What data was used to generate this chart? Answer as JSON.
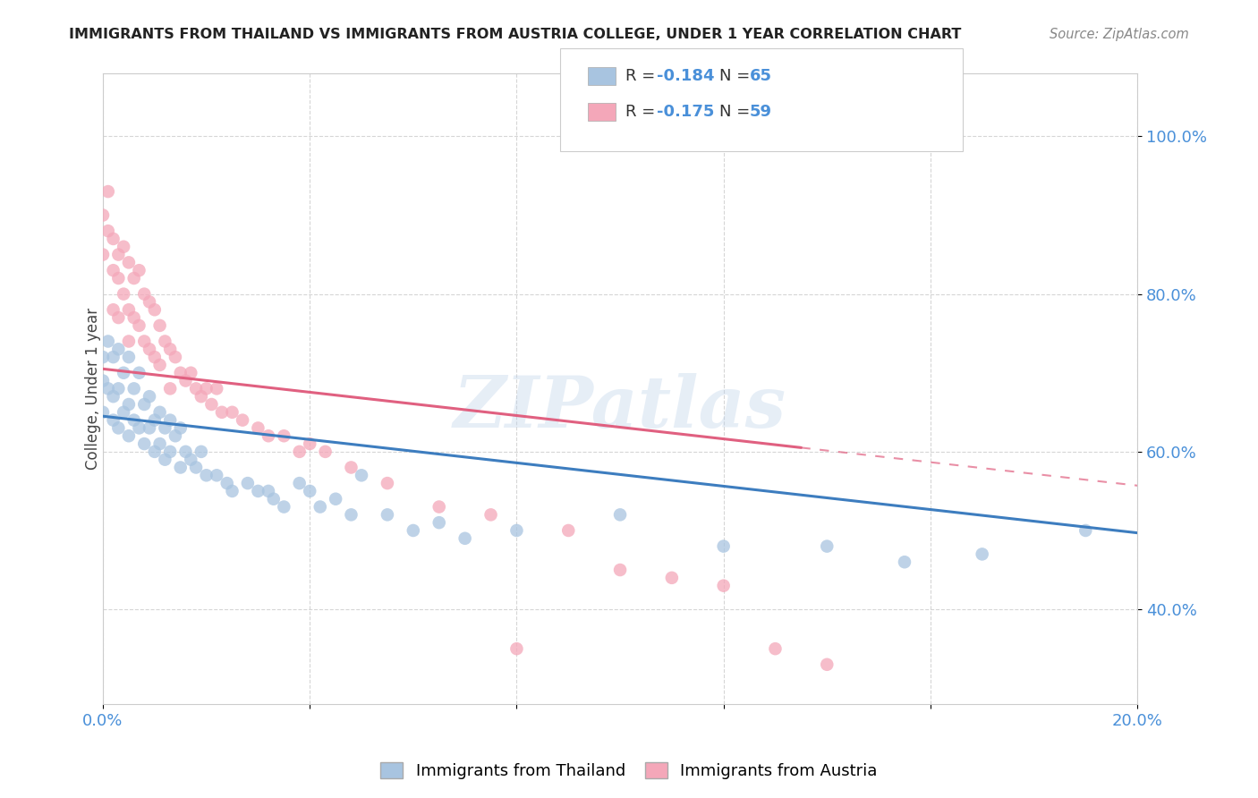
{
  "title": "IMMIGRANTS FROM THAILAND VS IMMIGRANTS FROM AUSTRIA COLLEGE, UNDER 1 YEAR CORRELATION CHART",
  "source": "Source: ZipAtlas.com",
  "ylabel": "College, Under 1 year",
  "ytick_labels": [
    "40.0%",
    "60.0%",
    "80.0%",
    "100.0%"
  ],
  "ytick_values": [
    0.4,
    0.6,
    0.8,
    1.0
  ],
  "xlim": [
    0.0,
    0.2
  ],
  "ylim": [
    0.28,
    1.08
  ],
  "legend_r_thailand": "R = -0.184",
  "legend_n_thailand": "N = 65",
  "legend_r_austria": "R = -0.175",
  "legend_n_austria": "N = 59",
  "thailand_color": "#a8c4e0",
  "austria_color": "#f4a7b9",
  "trend_thailand_color": "#3d7dbf",
  "trend_austria_color": "#e06080",
  "background_color": "#ffffff",
  "watermark": "ZIPatlas",
  "thailand_scatter_x": [
    0.0,
    0.0,
    0.0,
    0.001,
    0.001,
    0.002,
    0.002,
    0.002,
    0.003,
    0.003,
    0.003,
    0.004,
    0.004,
    0.005,
    0.005,
    0.005,
    0.006,
    0.006,
    0.007,
    0.007,
    0.008,
    0.008,
    0.009,
    0.009,
    0.01,
    0.01,
    0.011,
    0.011,
    0.012,
    0.012,
    0.013,
    0.013,
    0.014,
    0.015,
    0.015,
    0.016,
    0.017,
    0.018,
    0.019,
    0.02,
    0.022,
    0.024,
    0.025,
    0.028,
    0.03,
    0.032,
    0.033,
    0.035,
    0.038,
    0.04,
    0.042,
    0.045,
    0.048,
    0.05,
    0.055,
    0.06,
    0.065,
    0.07,
    0.08,
    0.1,
    0.12,
    0.14,
    0.155,
    0.17,
    0.19
  ],
  "thailand_scatter_y": [
    0.72,
    0.69,
    0.65,
    0.74,
    0.68,
    0.72,
    0.67,
    0.64,
    0.73,
    0.68,
    0.63,
    0.7,
    0.65,
    0.72,
    0.66,
    0.62,
    0.68,
    0.64,
    0.7,
    0.63,
    0.66,
    0.61,
    0.67,
    0.63,
    0.64,
    0.6,
    0.65,
    0.61,
    0.63,
    0.59,
    0.64,
    0.6,
    0.62,
    0.63,
    0.58,
    0.6,
    0.59,
    0.58,
    0.6,
    0.57,
    0.57,
    0.56,
    0.55,
    0.56,
    0.55,
    0.55,
    0.54,
    0.53,
    0.56,
    0.55,
    0.53,
    0.54,
    0.52,
    0.57,
    0.52,
    0.5,
    0.51,
    0.49,
    0.5,
    0.52,
    0.48,
    0.48,
    0.46,
    0.47,
    0.5
  ],
  "austria_scatter_x": [
    0.0,
    0.0,
    0.001,
    0.001,
    0.002,
    0.002,
    0.002,
    0.003,
    0.003,
    0.003,
    0.004,
    0.004,
    0.005,
    0.005,
    0.005,
    0.006,
    0.006,
    0.007,
    0.007,
    0.008,
    0.008,
    0.009,
    0.009,
    0.01,
    0.01,
    0.011,
    0.011,
    0.012,
    0.013,
    0.013,
    0.014,
    0.015,
    0.016,
    0.017,
    0.018,
    0.019,
    0.02,
    0.021,
    0.022,
    0.023,
    0.025,
    0.027,
    0.03,
    0.032,
    0.035,
    0.038,
    0.04,
    0.043,
    0.048,
    0.055,
    0.065,
    0.075,
    0.08,
    0.09,
    0.1,
    0.11,
    0.12,
    0.13,
    0.14
  ],
  "austria_scatter_y": [
    0.9,
    0.85,
    0.93,
    0.88,
    0.87,
    0.83,
    0.78,
    0.85,
    0.82,
    0.77,
    0.86,
    0.8,
    0.84,
    0.78,
    0.74,
    0.82,
    0.77,
    0.83,
    0.76,
    0.8,
    0.74,
    0.79,
    0.73,
    0.78,
    0.72,
    0.76,
    0.71,
    0.74,
    0.73,
    0.68,
    0.72,
    0.7,
    0.69,
    0.7,
    0.68,
    0.67,
    0.68,
    0.66,
    0.68,
    0.65,
    0.65,
    0.64,
    0.63,
    0.62,
    0.62,
    0.6,
    0.61,
    0.6,
    0.58,
    0.56,
    0.53,
    0.52,
    0.35,
    0.5,
    0.45,
    0.44,
    0.43,
    0.35,
    0.33
  ],
  "trend_thai_x0": 0.0,
  "trend_thai_x1": 0.2,
  "trend_thai_y0": 0.645,
  "trend_thai_y1": 0.497,
  "trend_aus_x0": 0.0,
  "trend_aus_x1": 0.2,
  "trend_aus_y0": 0.705,
  "trend_aus_y1": 0.557,
  "trend_aus_solid_end": 0.135
}
